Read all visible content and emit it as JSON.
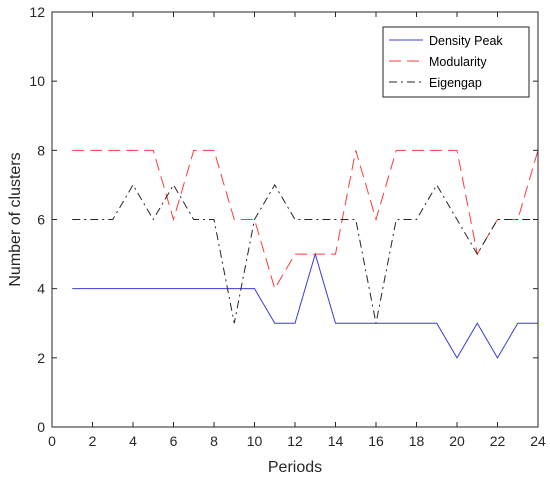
{
  "chart_data": {
    "type": "line",
    "title": "",
    "xlabel": "Periods",
    "ylabel": "Number of clusters",
    "xlim": [
      0,
      24
    ],
    "ylim": [
      0,
      12
    ],
    "xticks": [
      0,
      2,
      4,
      6,
      8,
      10,
      12,
      14,
      16,
      18,
      20,
      22,
      24
    ],
    "yticks": [
      0,
      2,
      4,
      6,
      8,
      10,
      12
    ],
    "grid": false,
    "legend_position": "top-right",
    "x": [
      1,
      2,
      3,
      4,
      5,
      6,
      7,
      8,
      9,
      10,
      11,
      12,
      13,
      14,
      15,
      16,
      17,
      18,
      19,
      20,
      21,
      22,
      23,
      24
    ],
    "series": [
      {
        "name": "Density Peak",
        "color": "#3b3bd6",
        "style": "solid",
        "values": [
          4,
          4,
          4,
          4,
          4,
          4,
          4,
          4,
          4,
          4,
          3,
          3,
          5,
          3,
          3,
          3,
          3,
          3,
          3,
          2,
          3,
          2,
          3,
          3
        ]
      },
      {
        "name": "Modularity",
        "color": "#ff3b3b",
        "style": "dashed",
        "values": [
          8,
          8,
          8,
          8,
          8,
          6,
          8,
          8,
          6,
          6,
          4,
          5,
          5,
          5,
          8,
          6,
          8,
          8,
          8,
          8,
          5,
          6,
          6,
          8
        ]
      },
      {
        "name": "Eigengap",
        "color": "#262626",
        "style": "dashdot",
        "values": [
          6,
          6,
          6,
          7,
          6,
          7,
          6,
          6,
          3,
          6,
          7,
          6,
          6,
          6,
          6,
          3,
          6,
          6,
          7,
          6,
          5,
          6,
          6,
          6
        ]
      }
    ]
  }
}
